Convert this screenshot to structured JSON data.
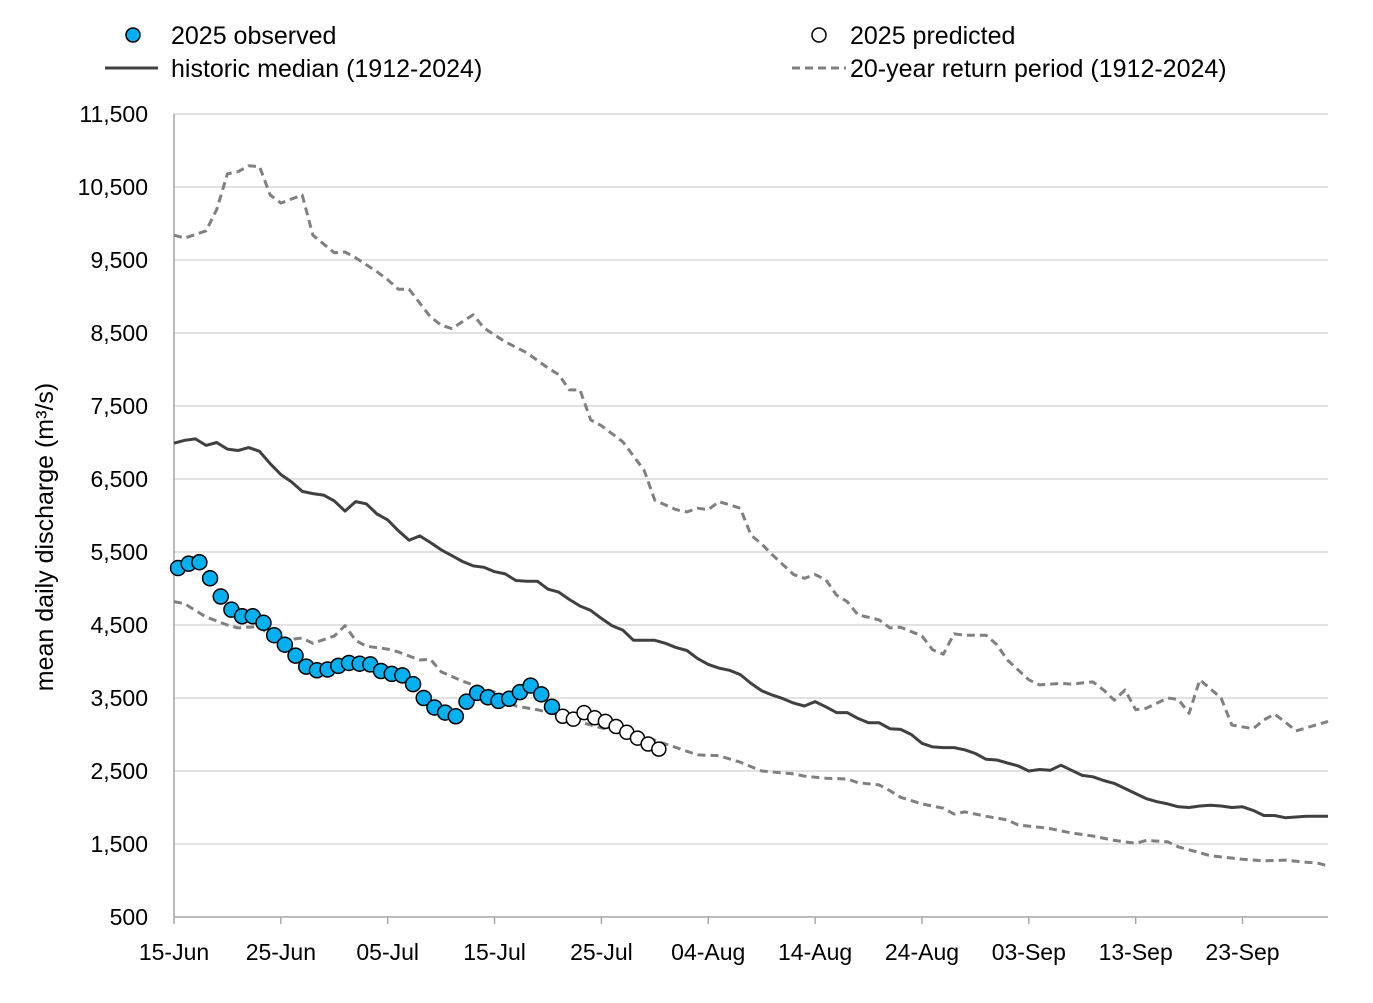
{
  "chart_data": {
    "type": "line",
    "title": "",
    "xlabel": "",
    "ylabel": "mean daily discharge (m³/s)",
    "ylim": [
      500,
      11500
    ],
    "xlim": [
      "15-Jun",
      "01-Oct"
    ],
    "grid": true,
    "legend_position": "top",
    "y_ticks": [
      "500",
      "1,500",
      "2,500",
      "3,500",
      "4,500",
      "5,500",
      "6,500",
      "7,500",
      "8,500",
      "9,500",
      "10,500",
      "11,500"
    ],
    "x_ticks": [
      "15-Jun",
      "25-Jun",
      "05-Jul",
      "15-Jul",
      "25-Jul",
      "04-Aug",
      "14-Aug",
      "24-Aug",
      "03-Sep",
      "13-Sep",
      "23-Sep"
    ],
    "legend": {
      "observed": "2025 observed",
      "predicted": "2025 predicted",
      "median": "historic median (1912-2024)",
      "return_period": "20-year return period (1912-2024)"
    },
    "colors": {
      "observed": "#00B0F0",
      "median": "#404040",
      "return_period": "#808080",
      "grid": "#D9D9D9"
    },
    "series": {
      "observed": [
        [
          "15-Jun",
          5280
        ],
        [
          "16-Jun",
          5340
        ],
        [
          "17-Jun",
          5360
        ],
        [
          "18-Jun",
          5140
        ],
        [
          "19-Jun",
          4890
        ],
        [
          "20-Jun",
          4710
        ],
        [
          "21-Jun",
          4620
        ],
        [
          "22-Jun",
          4620
        ],
        [
          "23-Jun",
          4530
        ],
        [
          "24-Jun",
          4360
        ],
        [
          "25-Jun",
          4230
        ],
        [
          "26-Jun",
          4080
        ],
        [
          "27-Jun",
          3930
        ],
        [
          "28-Jun",
          3880
        ],
        [
          "29-Jun",
          3890
        ],
        [
          "30-Jun",
          3940
        ],
        [
          "01-Jul",
          3980
        ],
        [
          "02-Jul",
          3970
        ],
        [
          "03-Jul",
          3960
        ],
        [
          "04-Jul",
          3870
        ],
        [
          "05-Jul",
          3830
        ],
        [
          "06-Jul",
          3810
        ],
        [
          "07-Jul",
          3690
        ],
        [
          "08-Jul",
          3500
        ],
        [
          "09-Jul",
          3370
        ],
        [
          "10-Jul",
          3300
        ],
        [
          "11-Jul",
          3250
        ],
        [
          "12-Jul",
          3450
        ],
        [
          "13-Jul",
          3570
        ],
        [
          "14-Jul",
          3510
        ],
        [
          "15-Jul",
          3460
        ],
        [
          "16-Jul",
          3490
        ],
        [
          "17-Jul",
          3580
        ],
        [
          "18-Jul",
          3670
        ],
        [
          "19-Jul",
          3550
        ],
        [
          "20-Jul",
          3380
        ]
      ],
      "predicted": [
        [
          "21-Jul",
          3250
        ],
        [
          "22-Jul",
          3210
        ],
        [
          "23-Jul",
          3300
        ],
        [
          "24-Jul",
          3230
        ],
        [
          "25-Jul",
          3180
        ],
        [
          "26-Jul",
          3110
        ],
        [
          "27-Jul",
          3030
        ],
        [
          "28-Jul",
          2950
        ],
        [
          "29-Jul",
          2870
        ],
        [
          "30-Jul",
          2800
        ]
      ],
      "median": [
        [
          "15-Jun",
          6990
        ],
        [
          "16-Jun",
          7030
        ],
        [
          "17-Jun",
          7050
        ],
        [
          "18-Jun",
          6960
        ],
        [
          "19-Jun",
          7000
        ],
        [
          "20-Jun",
          6910
        ],
        [
          "21-Jun",
          6890
        ],
        [
          "22-Jun",
          6930
        ],
        [
          "23-Jun",
          6880
        ],
        [
          "24-Jun",
          6710
        ],
        [
          "25-Jun",
          6560
        ],
        [
          "26-Jun",
          6460
        ],
        [
          "27-Jun",
          6330
        ],
        [
          "28-Jun",
          6300
        ],
        [
          "29-Jun",
          6280
        ],
        [
          "30-Jun",
          6200
        ],
        [
          "01-Jul",
          6060
        ],
        [
          "02-Jul",
          6190
        ],
        [
          "03-Jul",
          6160
        ],
        [
          "04-Jul",
          6020
        ],
        [
          "05-Jul",
          5940
        ],
        [
          "06-Jul",
          5790
        ],
        [
          "07-Jul",
          5660
        ],
        [
          "08-Jul",
          5720
        ],
        [
          "09-Jul",
          5630
        ],
        [
          "10-Jul",
          5530
        ],
        [
          "11-Jul",
          5450
        ],
        [
          "12-Jul",
          5370
        ],
        [
          "13-Jul",
          5310
        ],
        [
          "14-Jul",
          5290
        ],
        [
          "15-Jul",
          5230
        ],
        [
          "16-Jul",
          5200
        ],
        [
          "17-Jul",
          5110
        ],
        [
          "18-Jul",
          5100
        ],
        [
          "19-Jul",
          5100
        ],
        [
          "20-Jul",
          4990
        ],
        [
          "21-Jul",
          4950
        ],
        [
          "22-Jul",
          4850
        ],
        [
          "23-Jul",
          4760
        ],
        [
          "24-Jul",
          4700
        ],
        [
          "25-Jul",
          4590
        ],
        [
          "26-Jul",
          4490
        ],
        [
          "27-Jul",
          4430
        ],
        [
          "28-Jul",
          4290
        ],
        [
          "29-Jul",
          4290
        ],
        [
          "30-Jul",
          4290
        ],
        [
          "31-Jul",
          4250
        ],
        [
          "01-Aug",
          4190
        ],
        [
          "02-Aug",
          4150
        ],
        [
          "03-Aug",
          4040
        ],
        [
          "04-Aug",
          3960
        ],
        [
          "05-Aug",
          3910
        ],
        [
          "06-Aug",
          3880
        ],
        [
          "07-Aug",
          3820
        ],
        [
          "08-Aug",
          3700
        ],
        [
          "09-Aug",
          3600
        ],
        [
          "10-Aug",
          3540
        ],
        [
          "11-Aug",
          3490
        ],
        [
          "12-Aug",
          3430
        ],
        [
          "13-Aug",
          3390
        ],
        [
          "14-Aug",
          3450
        ],
        [
          "15-Aug",
          3380
        ],
        [
          "16-Aug",
          3300
        ],
        [
          "17-Aug",
          3300
        ],
        [
          "18-Aug",
          3220
        ],
        [
          "19-Aug",
          3160
        ],
        [
          "20-Aug",
          3160
        ],
        [
          "21-Aug",
          3080
        ],
        [
          "22-Aug",
          3070
        ],
        [
          "23-Aug",
          3000
        ],
        [
          "24-Aug",
          2880
        ],
        [
          "25-Aug",
          2830
        ],
        [
          "26-Aug",
          2820
        ],
        [
          "27-Aug",
          2820
        ],
        [
          "28-Aug",
          2790
        ],
        [
          "29-Aug",
          2740
        ],
        [
          "30-Aug",
          2660
        ],
        [
          "31-Aug",
          2650
        ],
        [
          "01-Sep",
          2610
        ],
        [
          "02-Sep",
          2570
        ],
        [
          "03-Sep",
          2500
        ],
        [
          "04-Sep",
          2520
        ],
        [
          "05-Sep",
          2510
        ],
        [
          "06-Sep",
          2580
        ],
        [
          "07-Sep",
          2510
        ],
        [
          "08-Sep",
          2440
        ],
        [
          "09-Sep",
          2420
        ],
        [
          "10-Sep",
          2370
        ],
        [
          "11-Sep",
          2330
        ],
        [
          "12-Sep",
          2260
        ],
        [
          "13-Sep",
          2190
        ],
        [
          "14-Sep",
          2120
        ],
        [
          "15-Sep",
          2080
        ],
        [
          "16-Sep",
          2050
        ],
        [
          "17-Sep",
          2010
        ],
        [
          "18-Sep",
          2000
        ],
        [
          "19-Sep",
          2020
        ],
        [
          "20-Sep",
          2030
        ],
        [
          "21-Sep",
          2020
        ],
        [
          "22-Sep",
          2000
        ],
        [
          "23-Sep",
          2010
        ],
        [
          "24-Sep",
          1960
        ],
        [
          "25-Sep",
          1890
        ],
        [
          "26-Sep",
          1890
        ],
        [
          "27-Sep",
          1860
        ],
        [
          "28-Sep",
          1870
        ],
        [
          "29-Sep",
          1880
        ],
        [
          "30-Sep",
          1880
        ],
        [
          "01-Oct",
          1880
        ]
      ],
      "return_high": [
        [
          "15-Jun",
          9840
        ],
        [
          "16-Jun",
          9800
        ],
        [
          "18-Jun",
          9900
        ],
        [
          "19-Jun",
          10190
        ],
        [
          "20-Jun",
          10680
        ],
        [
          "21-Jun",
          10710
        ],
        [
          "22-Jun",
          10790
        ],
        [
          "23-Jun",
          10780
        ],
        [
          "24-Jun",
          10390
        ],
        [
          "25-Jun",
          10280
        ],
        [
          "27-Jun",
          10390
        ],
        [
          "28-Jun",
          9840
        ],
        [
          "30-Jun",
          9600
        ],
        [
          "01-Jul",
          9610
        ],
        [
          "02-Jul",
          9530
        ],
        [
          "04-Jul",
          9340
        ],
        [
          "05-Jul",
          9230
        ],
        [
          "06-Jul",
          9100
        ],
        [
          "07-Jul",
          9100
        ],
        [
          "09-Jul",
          8720
        ],
        [
          "10-Jul",
          8610
        ],
        [
          "11-Jul",
          8560
        ],
        [
          "13-Jul",
          8750
        ],
        [
          "14-Jul",
          8570
        ],
        [
          "16-Jul",
          8380
        ],
        [
          "18-Jul",
          8230
        ],
        [
          "20-Jul",
          8020
        ],
        [
          "21-Jul",
          7930
        ],
        [
          "22-Jul",
          7720
        ],
        [
          "23-Jul",
          7720
        ],
        [
          "24-Jul",
          7310
        ],
        [
          "25-Jul",
          7230
        ],
        [
          "27-Jul",
          7010
        ],
        [
          "29-Jul",
          6620
        ],
        [
          "30-Jul",
          6210
        ],
        [
          "01-Aug",
          6080
        ],
        [
          "02-Aug",
          6050
        ],
        [
          "03-Aug",
          6100
        ],
        [
          "04-Aug",
          6080
        ],
        [
          "05-Aug",
          6190
        ],
        [
          "07-Aug",
          6100
        ],
        [
          "08-Aug",
          5730
        ],
        [
          "09-Aug",
          5610
        ],
        [
          "10-Aug",
          5460
        ],
        [
          "12-Aug",
          5190
        ],
        [
          "13-Aug",
          5140
        ],
        [
          "14-Aug",
          5190
        ],
        [
          "15-Aug",
          5120
        ],
        [
          "16-Aug",
          4910
        ],
        [
          "17-Aug",
          4820
        ],
        [
          "18-Aug",
          4640
        ],
        [
          "20-Aug",
          4570
        ],
        [
          "21-Aug",
          4460
        ],
        [
          "22-Aug",
          4470
        ],
        [
          "24-Aug",
          4350
        ],
        [
          "25-Aug",
          4160
        ],
        [
          "26-Aug",
          4100
        ],
        [
          "27-Aug",
          4380
        ],
        [
          "28-Aug",
          4360
        ],
        [
          "30-Aug",
          4360
        ],
        [
          "31-Aug",
          4230
        ],
        [
          "01-Sep",
          4020
        ],
        [
          "03-Sep",
          3750
        ],
        [
          "04-Sep",
          3680
        ],
        [
          "06-Sep",
          3700
        ],
        [
          "07-Sep",
          3690
        ],
        [
          "09-Sep",
          3720
        ],
        [
          "10-Sep",
          3610
        ],
        [
          "11-Sep",
          3470
        ],
        [
          "12-Sep",
          3610
        ],
        [
          "13-Sep",
          3340
        ],
        [
          "14-Sep",
          3360
        ],
        [
          "16-Sep",
          3500
        ],
        [
          "17-Sep",
          3480
        ],
        [
          "18-Sep",
          3290
        ],
        [
          "19-Sep",
          3750
        ],
        [
          "21-Sep",
          3500
        ],
        [
          "22-Sep",
          3130
        ],
        [
          "24-Sep",
          3080
        ],
        [
          "25-Sep",
          3200
        ],
        [
          "26-Sep",
          3280
        ],
        [
          "27-Sep",
          3170
        ],
        [
          "28-Sep",
          3050
        ],
        [
          "01-Oct",
          3180
        ]
      ],
      "return_low": [
        [
          "15-Jun",
          4820
        ],
        [
          "16-Jun",
          4790
        ],
        [
          "18-Jun",
          4610
        ],
        [
          "20-Jun",
          4500
        ],
        [
          "21-Jun",
          4460
        ],
        [
          "23-Jun",
          4480
        ],
        [
          "24-Jun",
          4350
        ],
        [
          "25-Jun",
          4290
        ],
        [
          "27-Jun",
          4320
        ],
        [
          "28-Jun",
          4250
        ],
        [
          "30-Jun",
          4350
        ],
        [
          "01-Jul",
          4490
        ],
        [
          "02-Jul",
          4290
        ],
        [
          "03-Jul",
          4210
        ],
        [
          "05-Jul",
          4170
        ],
        [
          "06-Jul",
          4130
        ],
        [
          "08-Jul",
          4020
        ],
        [
          "09-Jul",
          4030
        ],
        [
          "10-Jul",
          3860
        ],
        [
          "12-Jul",
          3730
        ],
        [
          "13-Jul",
          3680
        ],
        [
          "15-Jul",
          3580
        ],
        [
          "16-Jul",
          3470
        ],
        [
          "17-Jul",
          3390
        ],
        [
          "19-Jul",
          3340
        ],
        [
          "21-Jul",
          3270
        ],
        [
          "23-Jul",
          3170
        ],
        [
          "25-Jul",
          3090
        ],
        [
          "27-Jul",
          3020
        ],
        [
          "29-Jul",
          2970
        ],
        [
          "30-Jul",
          2920
        ],
        [
          "01-Aug",
          2820
        ],
        [
          "03-Aug",
          2720
        ],
        [
          "05-Aug",
          2710
        ],
        [
          "07-Aug",
          2620
        ],
        [
          "08-Aug",
          2560
        ],
        [
          "09-Aug",
          2500
        ],
        [
          "12-Aug",
          2460
        ],
        [
          "13-Aug",
          2430
        ],
        [
          "15-Aug",
          2400
        ],
        [
          "17-Aug",
          2390
        ],
        [
          "18-Aug",
          2340
        ],
        [
          "20-Aug",
          2310
        ],
        [
          "21-Aug",
          2230
        ],
        [
          "22-Aug",
          2140
        ],
        [
          "24-Aug",
          2050
        ],
        [
          "26-Aug",
          1990
        ],
        [
          "27-Aug",
          1910
        ],
        [
          "28-Aug",
          1940
        ],
        [
          "30-Aug",
          1880
        ],
        [
          "01-Sep",
          1830
        ],
        [
          "02-Sep",
          1760
        ],
        [
          "04-Sep",
          1730
        ],
        [
          "05-Sep",
          1710
        ],
        [
          "07-Sep",
          1650
        ],
        [
          "09-Sep",
          1610
        ],
        [
          "11-Sep",
          1550
        ],
        [
          "13-Sep",
          1510
        ],
        [
          "14-Sep",
          1550
        ],
        [
          "16-Sep",
          1530
        ],
        [
          "17-Sep",
          1460
        ],
        [
          "19-Sep",
          1380
        ],
        [
          "20-Sep",
          1340
        ],
        [
          "23-Sep",
          1290
        ],
        [
          "25-Sep",
          1270
        ],
        [
          "27-Sep",
          1280
        ],
        [
          "29-Sep",
          1250
        ],
        [
          "30-Sep",
          1240
        ],
        [
          "01-Oct",
          1200
        ]
      ]
    }
  }
}
